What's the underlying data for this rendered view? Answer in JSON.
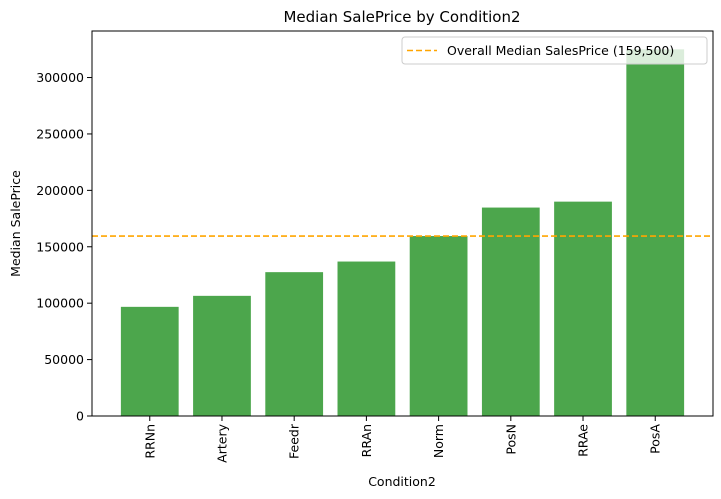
{
  "chart_data": {
    "type": "bar",
    "title": "Median SalePrice by Condition2",
    "xlabel": "Condition2",
    "ylabel": "Median SalePrice",
    "categories": [
      "RRNn",
      "Artery",
      "Feedr",
      "RRAn",
      "Norm",
      "PosN",
      "RRAe",
      "PosA"
    ],
    "values": [
      96750,
      106500,
      127500,
      136905,
      159500,
      184750,
      190000,
      325000
    ],
    "ylim": [
      0,
      341250
    ],
    "yticks": [
      0,
      50000,
      100000,
      150000,
      200000,
      250000,
      300000
    ],
    "bar_color": "#4ca64c",
    "reference_line": {
      "value": 159500,
      "label": "Overall Median SalesPrice (159,500)",
      "color": "#ffa500",
      "style": "dashed"
    },
    "legend_position": "upper-right",
    "grid": false
  }
}
